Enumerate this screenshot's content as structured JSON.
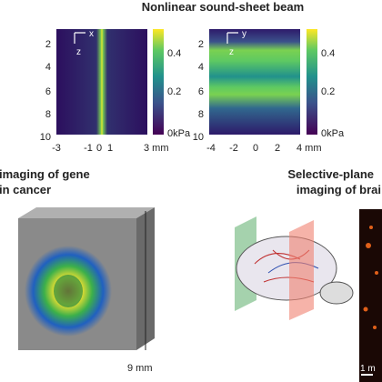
{
  "title": "Nonlinear sound-sheet beam",
  "beam_panels": [
    {
      "axis_labels": {
        "horizontal": "x",
        "vertical": "z"
      },
      "y_ticks": [
        "2",
        "4",
        "6",
        "8",
        "10"
      ],
      "x_ticks": [
        "-3",
        "-1",
        "0",
        "1",
        "3 mm"
      ],
      "colorbar_ticks": [
        "0.4",
        "0.2",
        "0kPa"
      ]
    },
    {
      "axis_labels": {
        "horizontal": "y",
        "vertical": "z"
      },
      "y_ticks": [
        "2",
        "4",
        "6",
        "8",
        "10"
      ],
      "x_ticks": [
        "-4",
        "-2",
        "0",
        "2",
        "4 mm"
      ],
      "colorbar_ticks": [
        "0.4",
        "0.2",
        "0kPa"
      ]
    }
  ],
  "panels": [
    {
      "title_lines": [
        "imaging of gene",
        "in cancer"
      ],
      "scale_label": "9 mm"
    },
    {
      "title_lines": [
        "Selective-plane",
        "imaging of brai"
      ],
      "scale_label": "1 m"
    }
  ]
}
